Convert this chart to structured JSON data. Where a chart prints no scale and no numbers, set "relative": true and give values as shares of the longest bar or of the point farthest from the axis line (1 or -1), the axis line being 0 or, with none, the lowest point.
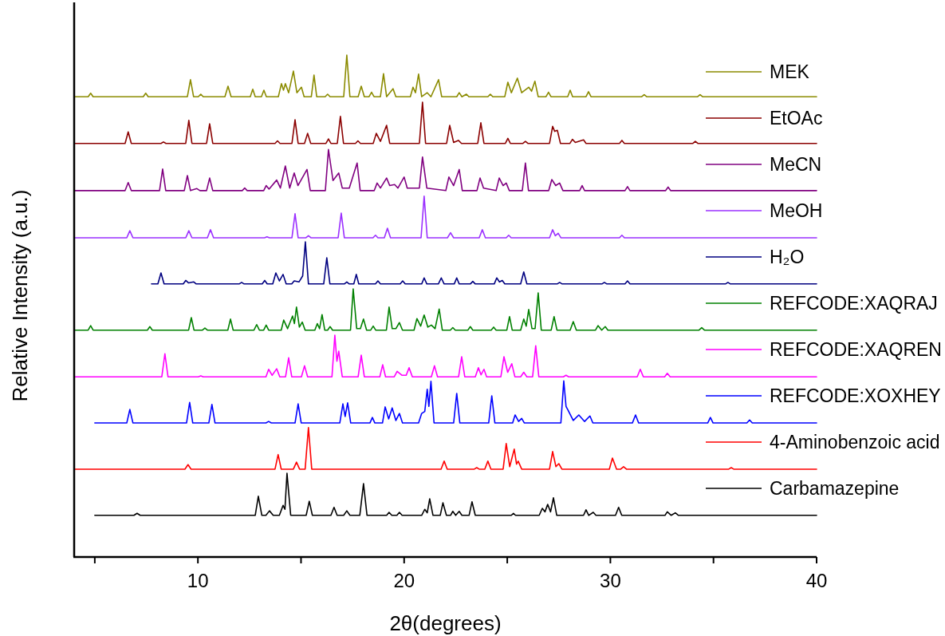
{
  "chart_data": {
    "type": "line",
    "xlabel": "2θ(degrees)",
    "ylabel": "Relative Intensity (a.u.)",
    "xlim": [
      4,
      40
    ],
    "xticks": [
      {
        "value": 5,
        "label": null
      },
      10,
      {
        "value": 15,
        "label": null
      },
      20,
      {
        "value": 25,
        "label": null
      },
      30,
      {
        "value": 35,
        "label": null
      },
      40
    ],
    "relative": true,
    "legend": "right",
    "series": [
      {
        "name": "MEK",
        "color": "#8b8b00",
        "x": [
          4,
          4.68,
          4.8,
          4.92,
          7.35,
          7.47,
          7.59,
          9.49,
          9.64,
          9.79,
          10.02,
          10.14,
          10.26,
          11.31,
          11.46,
          11.61,
          12.54,
          12.66,
          12.78,
          13.08,
          13.2,
          13.32,
          13.9,
          14.05,
          14.15,
          14.24,
          14.4,
          14.63,
          14.8,
          15.02,
          15.15,
          15.5,
          15.63,
          15.76,
          16.17,
          16.29,
          16.41,
          17.07,
          17.22,
          17.37,
          17.77,
          17.92,
          18.07,
          18.3,
          18.42,
          18.54,
          18.85,
          19.0,
          19.15,
          19.46,
          19.6,
          20.3,
          20.43,
          20.55,
          20.7,
          20.85,
          21.12,
          21.3,
          21.67,
          21.82,
          22.55,
          22.67,
          22.8,
          23.02,
          23.14,
          24.06,
          24.18,
          24.3,
          24.88,
          25.03,
          25.2,
          25.49,
          25.7,
          26.04,
          26.18,
          26.34,
          26.5,
          26.88,
          27.0,
          27.12,
          27.93,
          28.05,
          28.17,
          28.82,
          28.94,
          29.06,
          31.52,
          31.64,
          31.76,
          34.23,
          34.35,
          34.47,
          40
        ],
        "values": [
          0.917,
          0.917,
          0.924,
          0.917,
          0.917,
          0.924,
          0.917,
          0.917,
          0.951,
          0.917,
          0.917,
          0.922,
          0.917,
          0.917,
          0.938,
          0.917,
          0.917,
          0.932,
          0.917,
          0.917,
          0.93,
          0.917,
          0.917,
          0.943,
          0.93,
          0.943,
          0.925,
          0.968,
          0.925,
          0.936,
          0.917,
          0.917,
          0.96,
          0.917,
          0.917,
          0.922,
          0.917,
          0.917,
          1,
          0.917,
          0.917,
          0.938,
          0.917,
          0.917,
          0.926,
          0.917,
          0.917,
          0.963,
          0.917,
          0.933,
          0.917,
          0.917,
          0.936,
          0.925,
          0.962,
          0.917,
          0.925,
          0.917,
          0.951,
          0.917,
          0.917,
          0.925,
          0.917,
          0.922,
          0.917,
          0.917,
          0.922,
          0.917,
          0.917,
          0.946,
          0.925,
          0.954,
          0.925,
          0.936,
          0.928,
          0.948,
          0.917,
          0.917,
          0.926,
          0.917,
          0.917,
          0.93,
          0.917,
          0.917,
          0.927,
          0.917,
          0.917,
          0.921,
          0.917,
          0.917,
          0.921,
          0.917,
          0.917
        ]
      },
      {
        "name": "EtOAc",
        "color": "#8b0000",
        "x": [
          4,
          6.47,
          6.62,
          6.77,
          8.21,
          8.33,
          8.45,
          9.41,
          9.56,
          9.71,
          10.42,
          10.57,
          10.72,
          13.74,
          13.86,
          13.98,
          14.56,
          14.71,
          14.86,
          15.17,
          15.32,
          15.47,
          16.21,
          16.33,
          16.45,
          16.76,
          16.91,
          17.06,
          17.64,
          17.76,
          17.88,
          18.5,
          18.65,
          18.85,
          19.15,
          19.3,
          20.74,
          20.89,
          21.04,
          22.06,
          22.21,
          22.4,
          22.63,
          22.78,
          23.57,
          23.72,
          23.87,
          24.91,
          25.03,
          25.15,
          25.76,
          25.88,
          26.0,
          27.05,
          27.2,
          27.3,
          27.43,
          27.58,
          28.04,
          28.16,
          28.3,
          28.7,
          28.82,
          30.44,
          30.56,
          30.68,
          34.0,
          34.12,
          34.24,
          40
        ],
        "values": [
          0.824,
          0.824,
          0.847,
          0.824,
          0.824,
          0.827,
          0.824,
          0.824,
          0.87,
          0.824,
          0.824,
          0.863,
          0.824,
          0.824,
          0.829,
          0.824,
          0.824,
          0.871,
          0.824,
          0.824,
          0.844,
          0.824,
          0.824,
          0.833,
          0.824,
          0.824,
          0.878,
          0.824,
          0.824,
          0.829,
          0.824,
          0.824,
          0.844,
          0.828,
          0.86,
          0.824,
          0.824,
          0.906,
          0.824,
          0.824,
          0.86,
          0.826,
          0.83,
          0.824,
          0.824,
          0.865,
          0.824,
          0.824,
          0.834,
          0.824,
          0.824,
          0.828,
          0.824,
          0.824,
          0.858,
          0.848,
          0.85,
          0.824,
          0.824,
          0.832,
          0.826,
          0.831,
          0.824,
          0.824,
          0.83,
          0.824,
          0.824,
          0.828,
          0.824,
          0.824
        ]
      },
      {
        "name": "MeCN",
        "color": "#800080",
        "x": [
          4,
          6.47,
          6.62,
          6.77,
          8.14,
          8.29,
          8.44,
          9.34,
          9.49,
          9.64,
          9.95,
          10.1,
          10.42,
          10.57,
          10.72,
          12.15,
          12.27,
          12.39,
          13.19,
          13.31,
          13.45,
          13.82,
          14.0,
          14.24,
          14.45,
          14.67,
          14.85,
          15.29,
          15.45,
          16.18,
          16.33,
          16.55,
          16.83,
          17.0,
          17.34,
          17.72,
          17.87,
          18.55,
          18.69,
          18.85,
          19.15,
          19.3,
          19.54,
          19.7,
          20.0,
          20.15,
          20.74,
          20.89,
          21.1,
          22.02,
          22.17,
          22.4,
          22.67,
          22.82,
          23.53,
          23.68,
          23.85,
          24.46,
          24.61,
          24.8,
          24.95,
          25.1,
          25.73,
          25.88,
          26.03,
          27.01,
          27.16,
          27.35,
          27.54,
          27.7,
          28.51,
          28.63,
          28.75,
          30.71,
          30.83,
          30.95,
          32.68,
          32.8,
          32.92,
          40
        ],
        "values": [
          0.73,
          0.73,
          0.746,
          0.73,
          0.73,
          0.773,
          0.73,
          0.73,
          0.76,
          0.73,
          0.734,
          0.73,
          0.73,
          0.755,
          0.73,
          0.73,
          0.735,
          0.73,
          0.73,
          0.74,
          0.733,
          0.751,
          0.735,
          0.779,
          0.735,
          0.765,
          0.74,
          0.772,
          0.73,
          0.73,
          0.812,
          0.75,
          0.765,
          0.735,
          0.735,
          0.785,
          0.73,
          0.73,
          0.745,
          0.735,
          0.755,
          0.74,
          0.742,
          0.735,
          0.757,
          0.735,
          0.735,
          0.797,
          0.735,
          0.73,
          0.757,
          0.74,
          0.772,
          0.73,
          0.73,
          0.755,
          0.735,
          0.73,
          0.755,
          0.74,
          0.745,
          0.73,
          0.73,
          0.785,
          0.73,
          0.73,
          0.752,
          0.74,
          0.745,
          0.73,
          0.73,
          0.74,
          0.73,
          0.73,
          0.738,
          0.73,
          0.73,
          0.737,
          0.73,
          0.73
        ]
      },
      {
        "name": "MeOH",
        "color": "#9b30ff",
        "x": [
          4,
          6.55,
          6.7,
          6.85,
          9.41,
          9.56,
          9.71,
          10.46,
          10.61,
          10.76,
          13.23,
          13.35,
          13.47,
          14.56,
          14.71,
          14.86,
          15.24,
          15.36,
          15.48,
          16.8,
          16.95,
          17.1,
          18.49,
          18.61,
          18.73,
          19.04,
          19.19,
          19.34,
          20.82,
          20.97,
          21.12,
          22.1,
          22.25,
          22.4,
          23.64,
          23.79,
          23.94,
          24.95,
          25.07,
          25.19,
          27.05,
          27.2,
          27.33,
          27.47,
          27.6,
          30.44,
          30.56,
          30.68,
          40
        ],
        "values": [
          0.636,
          0.636,
          0.65,
          0.636,
          0.636,
          0.65,
          0.636,
          0.636,
          0.652,
          0.636,
          0.636,
          0.638,
          0.636,
          0.636,
          0.684,
          0.636,
          0.636,
          0.64,
          0.636,
          0.636,
          0.685,
          0.636,
          0.636,
          0.641,
          0.636,
          0.636,
          0.655,
          0.636,
          0.636,
          0.719,
          0.636,
          0.636,
          0.646,
          0.636,
          0.636,
          0.652,
          0.636,
          0.636,
          0.641,
          0.636,
          0.636,
          0.652,
          0.64,
          0.645,
          0.636,
          0.636,
          0.641,
          0.636,
          0.636
        ]
      },
      {
        "name": "H₂O",
        "color": "#000080",
        "x": [
          7.75,
          8.06,
          8.21,
          8.36,
          9.29,
          9.41,
          9.55,
          9.8,
          9.92,
          12.0,
          12.12,
          12.24,
          13.12,
          13.24,
          13.36,
          13.63,
          13.78,
          13.95,
          14.13,
          14.28,
          14.55,
          14.67,
          14.9,
          15.08,
          15.21,
          15.36,
          16.1,
          16.25,
          16.4,
          17.1,
          17.22,
          17.34,
          17.56,
          17.68,
          17.8,
          18.61,
          18.73,
          18.85,
          19.81,
          19.93,
          20.05,
          20.85,
          20.97,
          21.1,
          21.66,
          21.8,
          21.94,
          22.43,
          22.55,
          22.67,
          23.21,
          23.33,
          23.45,
          24.37,
          24.49,
          24.62,
          24.76,
          24.88,
          25.65,
          25.8,
          25.95,
          27.42,
          27.54,
          27.66,
          29.59,
          29.71,
          29.83,
          30.71,
          30.83,
          30.95,
          35.58,
          35.7,
          35.82,
          40
        ],
        "values": [
          0.544,
          0.544,
          0.566,
          0.544,
          0.544,
          0.551,
          0.546,
          0.548,
          0.544,
          0.544,
          0.547,
          0.544,
          0.544,
          0.551,
          0.544,
          0.544,
          0.566,
          0.55,
          0.563,
          0.544,
          0.544,
          0.55,
          0.548,
          0.56,
          0.628,
          0.544,
          0.544,
          0.596,
          0.544,
          0.544,
          0.548,
          0.544,
          0.544,
          0.563,
          0.544,
          0.544,
          0.55,
          0.544,
          0.544,
          0.55,
          0.544,
          0.544,
          0.556,
          0.544,
          0.544,
          0.556,
          0.544,
          0.544,
          0.556,
          0.544,
          0.544,
          0.549,
          0.544,
          0.544,
          0.556,
          0.548,
          0.551,
          0.544,
          0.544,
          0.568,
          0.544,
          0.544,
          0.547,
          0.544,
          0.544,
          0.547,
          0.544,
          0.544,
          0.55,
          0.544,
          0.544,
          0.547,
          0.544,
          0.544
        ]
      },
      {
        "name": "REFCODE:XAQRAJ",
        "color": "#008000",
        "x": [
          4,
          4.68,
          4.8,
          4.92,
          7.55,
          7.67,
          7.79,
          9.55,
          9.68,
          9.81,
          10.22,
          10.34,
          10.46,
          11.45,
          11.58,
          11.71,
          12.72,
          12.85,
          12.98,
          13.19,
          13.31,
          13.43,
          14.04,
          14.16,
          14.35,
          14.59,
          14.68,
          14.78,
          14.92,
          15.06,
          15.2,
          15.67,
          15.79,
          15.9,
          16.02,
          16.15,
          16.29,
          16.41,
          16.53,
          17.4,
          17.53,
          17.7,
          17.88,
          18.03,
          18.18,
          18.38,
          18.5,
          18.62,
          19.14,
          19.27,
          19.42,
          19.6,
          19.77,
          19.92,
          20.48,
          20.62,
          20.8,
          20.97,
          21.15,
          21.32,
          21.5,
          21.7,
          21.85,
          22.24,
          22.36,
          22.48,
          23.09,
          23.21,
          23.33,
          24.22,
          24.34,
          24.46,
          24.98,
          25.11,
          25.24,
          25.65,
          25.8,
          25.92,
          26.04,
          26.2,
          26.35,
          26.5,
          26.65,
          27.13,
          27.27,
          27.41,
          28.05,
          28.2,
          28.35,
          29.28,
          29.4,
          29.58,
          29.75,
          29.88,
          34.3,
          34.43,
          34.56,
          40
        ],
        "values": [
          0.452,
          0.452,
          0.461,
          0.452,
          0.452,
          0.459,
          0.452,
          0.452,
          0.477,
          0.452,
          0.452,
          0.456,
          0.452,
          0.452,
          0.474,
          0.452,
          0.452,
          0.463,
          0.452,
          0.452,
          0.462,
          0.452,
          0.452,
          0.472,
          0.455,
          0.48,
          0.465,
          0.498,
          0.458,
          0.468,
          0.452,
          0.452,
          0.465,
          0.455,
          0.483,
          0.452,
          0.452,
          0.459,
          0.452,
          0.452,
          0.534,
          0.455,
          0.455,
          0.474,
          0.452,
          0.452,
          0.46,
          0.452,
          0.452,
          0.498,
          0.455,
          0.455,
          0.467,
          0.452,
          0.452,
          0.475,
          0.46,
          0.482,
          0.458,
          0.462,
          0.455,
          0.494,
          0.452,
          0.452,
          0.457,
          0.452,
          0.452,
          0.459,
          0.452,
          0.452,
          0.458,
          0.452,
          0.452,
          0.479,
          0.452,
          0.452,
          0.474,
          0.46,
          0.493,
          0.455,
          0.455,
          0.526,
          0.452,
          0.452,
          0.479,
          0.452,
          0.452,
          0.469,
          0.452,
          0.452,
          0.461,
          0.452,
          0.459,
          0.452,
          0.452,
          0.457,
          0.452,
          0.452
        ]
      },
      {
        "name": "REFCODE:XAQREN",
        "color": "#ff00ff",
        "x": [
          4,
          8.25,
          8.4,
          8.55,
          10.02,
          10.14,
          10.26,
          13.3,
          13.43,
          13.6,
          13.82,
          13.97,
          14.25,
          14.4,
          14.55,
          15.02,
          15.17,
          15.32,
          16.5,
          16.64,
          16.74,
          16.83,
          17.0,
          17.77,
          17.92,
          18.07,
          18.82,
          18.96,
          19.1,
          19.52,
          19.66,
          19.9,
          20.1,
          20.24,
          20.4,
          21.32,
          21.47,
          21.62,
          22.64,
          22.79,
          22.94,
          23.45,
          23.6,
          23.73,
          23.87,
          24.0,
          24.69,
          24.84,
          25.02,
          25.22,
          25.37,
          25.65,
          25.8,
          25.95,
          26.23,
          26.38,
          26.53,
          27.72,
          27.85,
          27.98,
          31.3,
          31.45,
          31.6,
          32.63,
          32.76,
          32.9,
          40
        ],
        "values": [
          0.359,
          0.359,
          0.405,
          0.359,
          0.359,
          0.361,
          0.359,
          0.359,
          0.374,
          0.362,
          0.375,
          0.359,
          0.359,
          0.397,
          0.359,
          0.359,
          0.381,
          0.359,
          0.359,
          0.442,
          0.39,
          0.41,
          0.359,
          0.359,
          0.402,
          0.359,
          0.359,
          0.383,
          0.359,
          0.359,
          0.37,
          0.362,
          0.362,
          0.377,
          0.359,
          0.359,
          0.381,
          0.359,
          0.359,
          0.399,
          0.359,
          0.359,
          0.377,
          0.363,
          0.374,
          0.359,
          0.359,
          0.399,
          0.368,
          0.385,
          0.359,
          0.359,
          0.368,
          0.359,
          0.359,
          0.421,
          0.359,
          0.359,
          0.362,
          0.359,
          0.359,
          0.374,
          0.359,
          0.359,
          0.366,
          0.359,
          0.359
        ]
      },
      {
        "name": "REFCODE:XOXHEY",
        "color": "#0000ff",
        "x": [
          5,
          6.55,
          6.7,
          6.85,
          9.45,
          9.6,
          9.75,
          10.53,
          10.68,
          10.83,
          13.3,
          13.43,
          13.56,
          14.71,
          14.86,
          15.01,
          16.88,
          17.03,
          17.14,
          17.26,
          17.41,
          18.34,
          18.46,
          18.58,
          18.95,
          19.08,
          19.25,
          19.42,
          19.6,
          19.77,
          19.92,
          20.7,
          20.85,
          21.0,
          21.12,
          21.2,
          21.3,
          21.45,
          22.4,
          22.55,
          22.7,
          24.1,
          24.25,
          24.4,
          25.26,
          25.38,
          25.55,
          25.7,
          25.83,
          27.6,
          27.74,
          27.85,
          27.93,
          28.2,
          28.47,
          28.75,
          29.01,
          29.15,
          31.07,
          31.22,
          31.37,
          34.72,
          34.85,
          34.98,
          36.62,
          36.75,
          36.88,
          40
        ],
        "values": [
          0.267,
          0.267,
          0.294,
          0.267,
          0.267,
          0.308,
          0.267,
          0.267,
          0.304,
          0.267,
          0.267,
          0.27,
          0.267,
          0.267,
          0.305,
          0.267,
          0.267,
          0.305,
          0.28,
          0.307,
          0.267,
          0.267,
          0.278,
          0.267,
          0.267,
          0.299,
          0.275,
          0.297,
          0.272,
          0.286,
          0.267,
          0.267,
          0.286,
          0.29,
          0.334,
          0.3,
          0.35,
          0.267,
          0.267,
          0.326,
          0.267,
          0.267,
          0.321,
          0.267,
          0.267,
          0.283,
          0.27,
          0.276,
          0.267,
          0.267,
          0.351,
          0.3,
          0.294,
          0.272,
          0.283,
          0.27,
          0.281,
          0.267,
          0.267,
          0.283,
          0.267,
          0.267,
          0.278,
          0.267,
          0.267,
          0.273,
          0.267,
          0.267
        ]
      },
      {
        "name": "4-Aminobenzoic acid",
        "color": "#ff0000",
        "x": [
          4,
          9.37,
          9.52,
          9.67,
          13.74,
          13.89,
          14.04,
          14.63,
          14.78,
          14.93,
          15.2,
          15.36,
          15.52,
          21.79,
          21.94,
          22.09,
          23.4,
          23.52,
          23.64,
          23.91,
          24.06,
          24.21,
          24.8,
          24.95,
          25.12,
          25.34,
          25.45,
          25.53,
          25.7,
          27.05,
          27.2,
          27.36,
          27.5,
          27.65,
          29.95,
          30.1,
          30.3,
          30.5,
          30.64,
          30.78,
          35.74,
          35.86,
          35.98,
          40
        ],
        "values": [
          0.175,
          0.175,
          0.184,
          0.175,
          0.175,
          0.204,
          0.175,
          0.175,
          0.189,
          0.175,
          0.175,
          0.258,
          0.175,
          0.175,
          0.191,
          0.175,
          0.175,
          0.178,
          0.175,
          0.175,
          0.191,
          0.175,
          0.175,
          0.226,
          0.18,
          0.215,
          0.185,
          0.191,
          0.175,
          0.175,
          0.21,
          0.18,
          0.186,
          0.175,
          0.175,
          0.197,
          0.175,
          0.175,
          0.18,
          0.175,
          0.175,
          0.178,
          0.175,
          0.175
        ]
      },
      {
        "name": "Carbamazepine",
        "color": "#000000",
        "x": [
          5,
          6.9,
          7.05,
          7.2,
          12.6,
          12.78,
          12.93,
          13.1,
          13.3,
          13.47,
          13.65,
          13.95,
          14.13,
          14.22,
          14.32,
          14.5,
          15.25,
          15.4,
          15.55,
          16.45,
          16.6,
          16.75,
          17.07,
          17.22,
          17.37,
          17.85,
          18.03,
          18.2,
          19.15,
          19.27,
          19.4,
          19.65,
          19.77,
          19.9,
          20.85,
          21.0,
          21.12,
          21.24,
          21.4,
          21.75,
          21.88,
          22.05,
          22.25,
          22.36,
          22.5,
          22.67,
          22.8,
          23.15,
          23.29,
          23.45,
          25.2,
          25.3,
          25.4,
          26.55,
          26.7,
          26.83,
          26.96,
          27.1,
          27.24,
          27.4,
          28.7,
          28.82,
          28.95,
          29.17,
          29.3,
          30.25,
          30.4,
          30.55,
          32.65,
          32.76,
          32.95,
          33.15,
          33.3,
          40
        ],
        "values": [
          0.083,
          0.083,
          0.087,
          0.083,
          0.083,
          0.083,
          0.121,
          0.083,
          0.083,
          0.092,
          0.083,
          0.083,
          0.103,
          0.095,
          0.167,
          0.083,
          0.083,
          0.111,
          0.083,
          0.083,
          0.099,
          0.083,
          0.083,
          0.092,
          0.083,
          0.083,
          0.146,
          0.083,
          0.083,
          0.089,
          0.083,
          0.083,
          0.089,
          0.083,
          0.083,
          0.095,
          0.088,
          0.116,
          0.083,
          0.083,
          0.108,
          0.083,
          0.083,
          0.091,
          0.083,
          0.091,
          0.083,
          0.083,
          0.11,
          0.083,
          0.083,
          0.087,
          0.083,
          0.083,
          0.097,
          0.09,
          0.105,
          0.09,
          0.118,
          0.083,
          0.083,
          0.094,
          0.083,
          0.089,
          0.083,
          0.083,
          0.099,
          0.083,
          0.083,
          0.09,
          0.083,
          0.088,
          0.083,
          0.083
        ]
      }
    ]
  }
}
